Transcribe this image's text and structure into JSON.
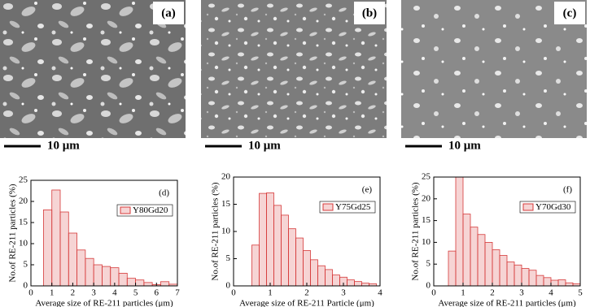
{
  "images": [
    {
      "label": "(a)",
      "scale_bar": "10 μm"
    },
    {
      "label": "(b)",
      "scale_bar": "10 μm"
    },
    {
      "label": "(c)",
      "scale_bar": "10 μm"
    }
  ],
  "chart_data": [
    {
      "type": "histogram",
      "panel_label": "(d)",
      "xlabel": "Average size of RE-211 particles (μm)",
      "ylabel": "No.of RE-211 particles (%)",
      "bins": [
        0.6,
        1.0,
        1.4,
        1.8,
        2.2,
        2.6,
        3.0,
        3.4,
        3.8,
        4.2,
        4.6,
        5.0,
        5.4,
        5.8,
        6.2,
        6.6,
        7.0
      ],
      "series": [
        {
          "name": "Y80Gd20",
          "color": "#d63a3a",
          "values": [
            18,
            22.7,
            17.5,
            12.5,
            8.5,
            6.5,
            5,
            4.6,
            4.3,
            3,
            1.8,
            1.4,
            0.8,
            0.3,
            1,
            0.4
          ]
        }
      ],
      "xlim": [
        0,
        7
      ],
      "xticks": [
        0,
        1,
        2,
        3,
        4,
        5,
        6,
        7
      ],
      "ylim": [
        0,
        25
      ],
      "yticks": [
        0,
        5,
        10,
        15,
        20,
        25
      ]
    },
    {
      "type": "histogram",
      "panel_label": "(e)",
      "xlabel": "Average size of RE-211 Particle (μm)",
      "ylabel": "No.of RE-211 particles (%)",
      "bins": [
        0.5,
        0.7,
        0.9,
        1.1,
        1.3,
        1.5,
        1.7,
        1.9,
        2.1,
        2.3,
        2.5,
        2.7,
        2.9,
        3.1,
        3.3,
        3.5,
        3.7,
        3.9
      ],
      "series": [
        {
          "name": "Y75Gd25",
          "color": "#d63a3a",
          "values": [
            7.5,
            17,
            17.1,
            14.8,
            13,
            10.5,
            8.8,
            6.5,
            4.8,
            3.7,
            3,
            2,
            1.6,
            1.1,
            0.8,
            0.5,
            0.4
          ]
        }
      ],
      "xlim": [
        0,
        4
      ],
      "xticks": [
        0,
        1,
        2,
        3,
        4
      ],
      "ylim": [
        0,
        20
      ],
      "yticks": [
        0,
        5,
        10,
        15,
        20
      ]
    },
    {
      "type": "histogram",
      "panel_label": "(f)",
      "xlabel": "Average size of RE-211 particles (μm)",
      "ylabel": "No.of RE-211 particles (%)",
      "bins": [
        0.5,
        0.75,
        1.0,
        1.25,
        1.5,
        1.75,
        2.0,
        2.25,
        2.5,
        2.75,
        3.0,
        3.25,
        3.5,
        3.75,
        4.0,
        4.25,
        4.5,
        4.75,
        5.0
      ],
      "series": [
        {
          "name": "Y70Gd30",
          "color": "#d63a3a",
          "values": [
            8,
            25,
            16.5,
            13.5,
            11.8,
            10,
            8.3,
            7,
            5.5,
            4.8,
            4,
            3.6,
            2.4,
            1.9,
            1.3,
            1.4,
            0.7,
            0.5
          ]
        }
      ],
      "xlim": [
        0,
        5
      ],
      "xticks": [
        0,
        1,
        2,
        3,
        4,
        5
      ],
      "ylim": [
        0,
        25
      ],
      "yticks": [
        0,
        5,
        10,
        15,
        20,
        25
      ]
    }
  ]
}
